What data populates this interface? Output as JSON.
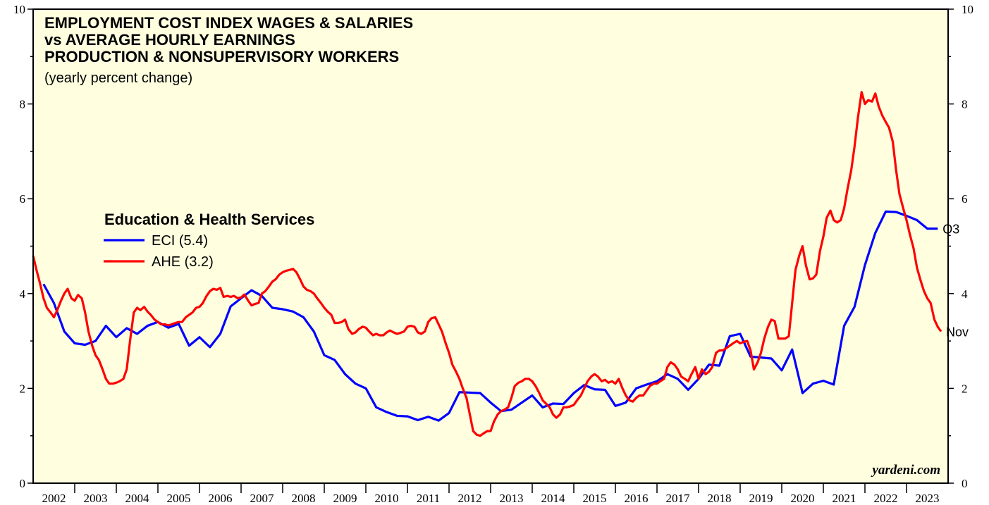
{
  "chart_data": {
    "type": "line",
    "title": [
      "EMPLOYMENT COST INDEX WAGES & SALARIES",
      "vs AVERAGE HOURLY EARNINGS",
      "PRODUCTION & NONSUPERVISORY WORKERS"
    ],
    "subtitle": "(yearly percent change)",
    "legend_title": "Education & Health Services",
    "annotation": "yardeni.com",
    "categories": [
      "2002",
      "2003",
      "2004",
      "2005",
      "2006",
      "2007",
      "2008",
      "2009",
      "2010",
      "2011",
      "2012",
      "2013",
      "2014",
      "2015",
      "2016",
      "2017",
      "2018",
      "2019",
      "2020",
      "2021",
      "2022",
      "2023"
    ],
    "xlim": [
      2002,
      2024
    ],
    "ylim": [
      0,
      10
    ],
    "yticks": [
      0,
      2,
      4,
      6,
      8,
      10
    ],
    "yminorticks": [
      1,
      3,
      5,
      7,
      9
    ],
    "y2lim": [
      0,
      10
    ],
    "y2ticks": [
      0,
      2,
      4,
      6,
      8,
      10
    ],
    "background": "#ffffe0",
    "series": [
      {
        "name": "ECI (5.4)",
        "color": "#0000ff",
        "end_label": "Q3",
        "x": [
          2002.25,
          2002.5,
          2002.75,
          2003,
          2003.25,
          2003.5,
          2003.75,
          2004,
          2004.25,
          2004.5,
          2004.75,
          2005,
          2005.25,
          2005.5,
          2005.75,
          2006,
          2006.25,
          2006.5,
          2006.75,
          2007,
          2007.25,
          2007.5,
          2007.75,
          2008,
          2008.25,
          2008.5,
          2008.75,
          2009,
          2009.25,
          2009.5,
          2009.75,
          2010,
          2010.25,
          2010.5,
          2010.75,
          2011,
          2011.25,
          2011.5,
          2011.75,
          2012,
          2012.25,
          2012.5,
          2012.75,
          2013,
          2013.25,
          2013.5,
          2013.75,
          2014,
          2014.25,
          2014.5,
          2014.75,
          2015,
          2015.25,
          2015.5,
          2015.75,
          2016,
          2016.25,
          2016.5,
          2016.75,
          2017,
          2017.25,
          2017.5,
          2017.75,
          2018,
          2018.25,
          2018.5,
          2018.75,
          2019,
          2019.25,
          2019.5,
          2019.75,
          2020,
          2020.25,
          2020.5,
          2020.75,
          2021,
          2021.25,
          2021.5,
          2021.75,
          2022,
          2022.25,
          2022.5,
          2022.75,
          2023,
          2023.25,
          2023.5,
          2023.75
        ],
        "values": [
          4.2,
          3.8,
          3.2,
          2.95,
          2.92,
          3.0,
          3.32,
          3.08,
          3.27,
          3.15,
          3.32,
          3.4,
          3.28,
          3.36,
          2.9,
          3.08,
          2.87,
          3.15,
          3.73,
          3.9,
          4.07,
          3.95,
          3.7,
          3.67,
          3.62,
          3.5,
          3.2,
          2.7,
          2.6,
          2.3,
          2.1,
          2.0,
          1.6,
          1.5,
          1.42,
          1.41,
          1.33,
          1.4,
          1.32,
          1.48,
          1.92,
          1.91,
          1.9,
          1.7,
          1.52,
          1.55,
          1.7,
          1.85,
          1.6,
          1.68,
          1.67,
          1.9,
          2.07,
          1.98,
          1.97,
          1.63,
          1.7,
          2.0,
          2.08,
          2.15,
          2.3,
          2.2,
          1.97,
          2.2,
          2.5,
          2.48,
          3.1,
          3.15,
          2.67,
          2.65,
          2.63,
          2.38,
          2.82,
          1.9,
          2.1,
          2.16,
          2.08,
          3.32,
          3.72,
          4.6,
          5.28,
          5.73,
          5.72,
          5.64,
          5.55,
          5.37,
          5.37
        ]
      },
      {
        "name": "AHE (3.2)",
        "color": "#ff0000",
        "end_label": "Nov",
        "x": [
          2002,
          2002.08,
          2002.17,
          2002.25,
          2002.33,
          2002.42,
          2002.5,
          2002.58,
          2002.67,
          2002.75,
          2002.83,
          2002.92,
          2003,
          2003.08,
          2003.17,
          2003.25,
          2003.33,
          2003.42,
          2003.5,
          2003.58,
          2003.67,
          2003.75,
          2003.83,
          2003.92,
          2004,
          2004.08,
          2004.17,
          2004.25,
          2004.33,
          2004.42,
          2004.5,
          2004.58,
          2004.67,
          2004.75,
          2004.83,
          2004.92,
          2005,
          2005.08,
          2005.17,
          2005.25,
          2005.33,
          2005.42,
          2005.5,
          2005.58,
          2005.67,
          2005.75,
          2005.83,
          2005.92,
          2006,
          2006.08,
          2006.17,
          2006.25,
          2006.33,
          2006.42,
          2006.5,
          2006.58,
          2006.67,
          2006.75,
          2006.83,
          2006.92,
          2007,
          2007.08,
          2007.17,
          2007.25,
          2007.33,
          2007.42,
          2007.5,
          2007.58,
          2007.67,
          2007.75,
          2007.83,
          2007.92,
          2008,
          2008.08,
          2008.17,
          2008.25,
          2008.33,
          2008.42,
          2008.5,
          2008.58,
          2008.67,
          2008.75,
          2008.83,
          2008.92,
          2009,
          2009.08,
          2009.17,
          2009.25,
          2009.33,
          2009.42,
          2009.5,
          2009.58,
          2009.67,
          2009.75,
          2009.83,
          2009.92,
          2010,
          2010.08,
          2010.17,
          2010.25,
          2010.33,
          2010.42,
          2010.5,
          2010.58,
          2010.67,
          2010.75,
          2010.83,
          2010.92,
          2011,
          2011.08,
          2011.17,
          2011.25,
          2011.33,
          2011.42,
          2011.5,
          2011.58,
          2011.67,
          2011.75,
          2011.83,
          2011.92,
          2012,
          2012.08,
          2012.17,
          2012.25,
          2012.33,
          2012.42,
          2012.5,
          2012.58,
          2012.67,
          2012.75,
          2012.83,
          2012.92,
          2013,
          2013.08,
          2013.17,
          2013.25,
          2013.33,
          2013.42,
          2013.5,
          2013.58,
          2013.67,
          2013.75,
          2013.83,
          2013.92,
          2014,
          2014.08,
          2014.17,
          2014.25,
          2014.33,
          2014.42,
          2014.5,
          2014.58,
          2014.67,
          2014.75,
          2014.83,
          2014.92,
          2015,
          2015.08,
          2015.17,
          2015.25,
          2015.33,
          2015.42,
          2015.5,
          2015.58,
          2015.67,
          2015.75,
          2015.83,
          2015.92,
          2016,
          2016.08,
          2016.17,
          2016.25,
          2016.33,
          2016.42,
          2016.5,
          2016.58,
          2016.67,
          2016.75,
          2016.83,
          2016.92,
          2017,
          2017.08,
          2017.17,
          2017.25,
          2017.33,
          2017.42,
          2017.5,
          2017.58,
          2017.67,
          2017.75,
          2017.83,
          2017.92,
          2018,
          2018.08,
          2018.17,
          2018.25,
          2018.33,
          2018.42,
          2018.5,
          2018.58,
          2018.67,
          2018.75,
          2018.83,
          2018.92,
          2019,
          2019.08,
          2019.17,
          2019.25,
          2019.33,
          2019.42,
          2019.5,
          2019.58,
          2019.67,
          2019.75,
          2019.83,
          2019.92,
          2020,
          2020.08,
          2020.17,
          2020.25,
          2020.33,
          2020.42,
          2020.5,
          2020.58,
          2020.67,
          2020.75,
          2020.83,
          2020.92,
          2021,
          2021.08,
          2021.17,
          2021.25,
          2021.33,
          2021.42,
          2021.5,
          2021.58,
          2021.67,
          2021.75,
          2021.83,
          2021.92,
          2022,
          2022.08,
          2022.17,
          2022.25,
          2022.33,
          2022.42,
          2022.5,
          2022.58,
          2022.67,
          2022.75,
          2022.83,
          2022.92,
          2023,
          2023.08,
          2023.17,
          2023.25,
          2023.33,
          2023.42,
          2023.5,
          2023.58,
          2023.67,
          2023.75,
          2023.83
        ],
        "values": [
          4.8,
          4.5,
          4.2,
          3.9,
          3.7,
          3.6,
          3.5,
          3.65,
          3.85,
          4.0,
          4.1,
          3.9,
          3.85,
          3.97,
          3.9,
          3.6,
          3.2,
          2.9,
          2.7,
          2.6,
          2.4,
          2.2,
          2.1,
          2.1,
          2.12,
          2.15,
          2.2,
          2.4,
          3.0,
          3.6,
          3.7,
          3.65,
          3.72,
          3.62,
          3.55,
          3.45,
          3.4,
          3.35,
          3.35,
          3.33,
          3.35,
          3.38,
          3.4,
          3.4,
          3.5,
          3.55,
          3.6,
          3.7,
          3.72,
          3.8,
          3.95,
          4.05,
          4.1,
          4.08,
          4.12,
          3.93,
          3.95,
          3.93,
          3.95,
          3.9,
          3.92,
          3.98,
          3.85,
          3.75,
          3.78,
          3.8,
          4.0,
          4.05,
          4.15,
          4.25,
          4.3,
          4.4,
          4.45,
          4.48,
          4.5,
          4.52,
          4.45,
          4.3,
          4.15,
          4.08,
          4.05,
          4.0,
          3.9,
          3.8,
          3.7,
          3.62,
          3.55,
          3.38,
          3.38,
          3.4,
          3.45,
          3.25,
          3.15,
          3.18,
          3.25,
          3.3,
          3.28,
          3.2,
          3.12,
          3.15,
          3.12,
          3.12,
          3.18,
          3.22,
          3.18,
          3.15,
          3.17,
          3.2,
          3.3,
          3.32,
          3.3,
          3.18,
          3.15,
          3.2,
          3.4,
          3.48,
          3.5,
          3.35,
          3.2,
          2.95,
          2.75,
          2.5,
          2.35,
          2.2,
          2.0,
          1.8,
          1.45,
          1.1,
          1.02,
          1.0,
          1.05,
          1.1,
          1.1,
          1.3,
          1.45,
          1.52,
          1.55,
          1.6,
          1.8,
          2.05,
          2.12,
          2.15,
          2.2,
          2.2,
          2.15,
          2.05,
          1.9,
          1.75,
          1.68,
          1.6,
          1.45,
          1.38,
          1.45,
          1.6,
          1.6,
          1.62,
          1.65,
          1.75,
          1.85,
          2.0,
          2.15,
          2.25,
          2.3,
          2.25,
          2.15,
          2.18,
          2.12,
          2.15,
          2.1,
          2.2,
          2.0,
          1.85,
          1.75,
          1.72,
          1.8,
          1.85,
          1.85,
          1.95,
          2.05,
          2.1,
          2.1,
          2.15,
          2.2,
          2.45,
          2.55,
          2.5,
          2.4,
          2.25,
          2.2,
          2.15,
          2.3,
          2.45,
          2.2,
          2.4,
          2.3,
          2.35,
          2.45,
          2.75,
          2.8,
          2.8,
          2.85,
          2.9,
          2.95,
          3.0,
          2.95,
          2.98,
          3.0,
          2.8,
          2.4,
          2.55,
          2.75,
          3.05,
          3.3,
          3.45,
          3.42,
          3.05,
          3.05,
          3.05,
          3.1,
          3.8,
          4.5,
          4.8,
          5.0,
          4.6,
          4.3,
          4.32,
          4.4,
          4.9,
          5.2,
          5.6,
          5.75,
          5.55,
          5.5,
          5.55,
          5.8,
          6.2,
          6.6,
          7.1,
          7.7,
          8.25,
          8.0,
          8.08,
          8.05,
          8.22,
          7.95,
          7.75,
          7.62,
          7.5,
          7.2,
          6.6,
          6.1,
          5.8,
          5.55,
          5.25,
          4.95,
          4.55,
          4.3,
          4.05,
          3.9,
          3.8,
          3.45,
          3.3,
          3.2
        ]
      }
    ]
  }
}
